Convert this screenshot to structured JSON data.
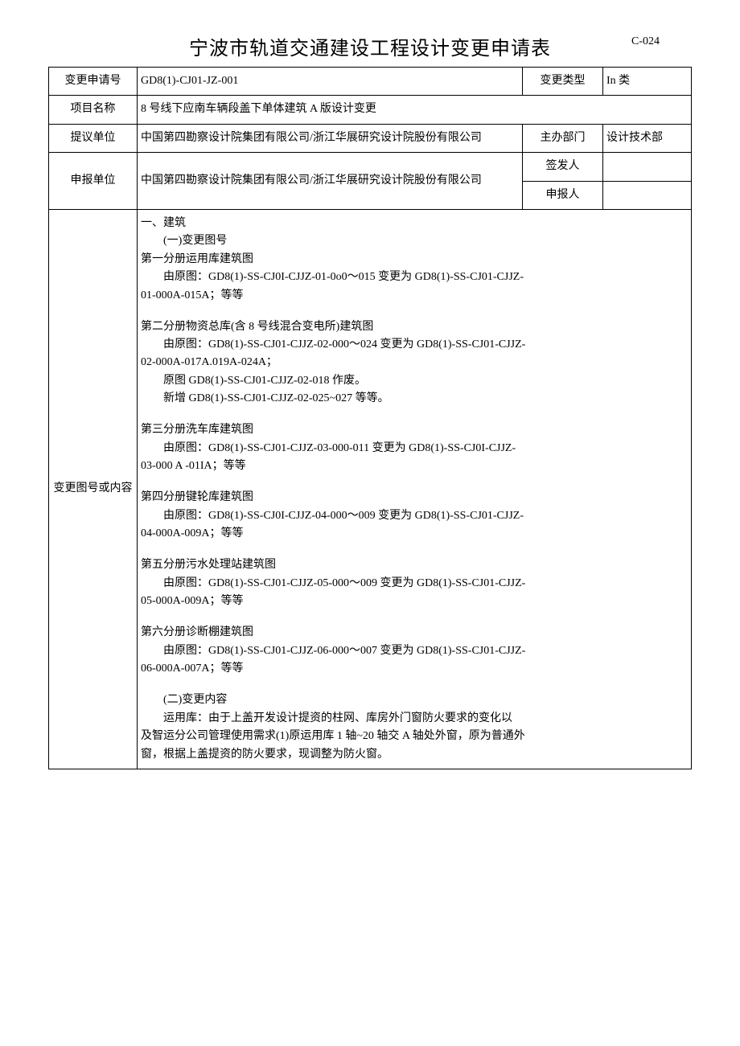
{
  "document": {
    "title": "宁波市轨道交通建设工程设计变更申请表",
    "form_code": "C-024",
    "colors": {
      "text": "#000000",
      "background": "#ffffff",
      "border": "#000000"
    },
    "typography": {
      "title_fontsize": 24,
      "body_fontsize": 14,
      "font_family": "SimSun"
    }
  },
  "rows": {
    "r1": {
      "label1": "变更申请号",
      "value1": "GD8(1)-CJ01-JZ-001",
      "label2": "变更类型",
      "value2": "In 类"
    },
    "r2": {
      "label1": "项目名称",
      "value1": "8 号线下应南车辆段盖下单体建筑 A 版设计变更"
    },
    "r3": {
      "label1": "提议单位",
      "value1": "中国第四勘察设计院集团有限公司/浙江华展研究设计院股份有限公司",
      "label2": "主办部门",
      "value2": "设计技术部"
    },
    "r4": {
      "label1": "申报单位",
      "value1": "中国第四勘察设计院集团有限公司/浙江华展研究设计院股份有限公司",
      "label2a": "签发人",
      "value2a": "",
      "label2b": "申报人",
      "value2b": ""
    },
    "r5": {
      "label": "变更图号或内容"
    }
  },
  "content": {
    "sec1_title": "一、建筑",
    "sec1_sub1": "(一)变更图号",
    "vol1_title": "第一分册运用库建筑图",
    "vol1_line1": "由原图：GD8(1)-SS-CJ0I-CJJZ-01-0o0～015 变更为 GD8(1)-SS-CJ01-CJJZ-",
    "vol1_line2": "01-000A-015A；等等",
    "vol2_title": "第二分册物资总库(含 8 号线混合变电所)建筑图",
    "vol2_line1": "由原图：GD8(1)-SS-CJ01-CJJZ-02-000～024 变更为 GD8(1)-SS-CJ01-CJJZ-",
    "vol2_line2": "02-000A-017A.019A-024A；",
    "vol2_line3": "原图 GD8(1)-SS-CJ01-CJJZ-02-018 作废。",
    "vol2_line4": "新增 GD8(1)-SS-CJ01-CJJZ-02-025~027 等等。",
    "vol3_title": "第三分册洗车库建筑图",
    "vol3_line1": "由原图：GD8(1)-SS-CJ01-CJJZ-03-000-011 变更为 GD8(1)-SS-CJ0I-CJJZ-",
    "vol3_line2": "03-000 A -01IA；等等",
    "vol4_title": "第四分册键轮库建筑图",
    "vol4_line1": "由原图：GD8(1)-SS-CJ0I-CJJZ-04-000～009 变更为 GD8(1)-SS-CJ01-CJJZ-",
    "vol4_line2": "04-000A-009A；等等",
    "vol5_title": "第五分册污水处理站建筑图",
    "vol5_line1": "由原图：GD8(1)-SS-CJ01-CJJZ-05-000～009 变更为 GD8(1)-SS-CJ01-CJJZ-",
    "vol5_line2": "05-000A-009A；等等",
    "vol6_title": "第六分册诊断棚建筑图",
    "vol6_line1": "由原图：GD8(1)-SS-CJ01-CJJZ-06-000～007 变更为 GD8(1)-SS-CJ01-CJJZ-",
    "vol6_line2": "06-000A-007A；等等",
    "sec1_sub2": "(二)变更内容",
    "change_line1": "运用库：由于上盖开发设计提资的柱网、库房外门窗防火要求的变化以",
    "change_line2": "及智运分公司管理使用需求(1)原运用库 1 轴~20 轴交 A 轴处外窗，原为普通外",
    "change_line3": "窗，根据上盖提资的防火要求，现调整为防火窗。"
  }
}
